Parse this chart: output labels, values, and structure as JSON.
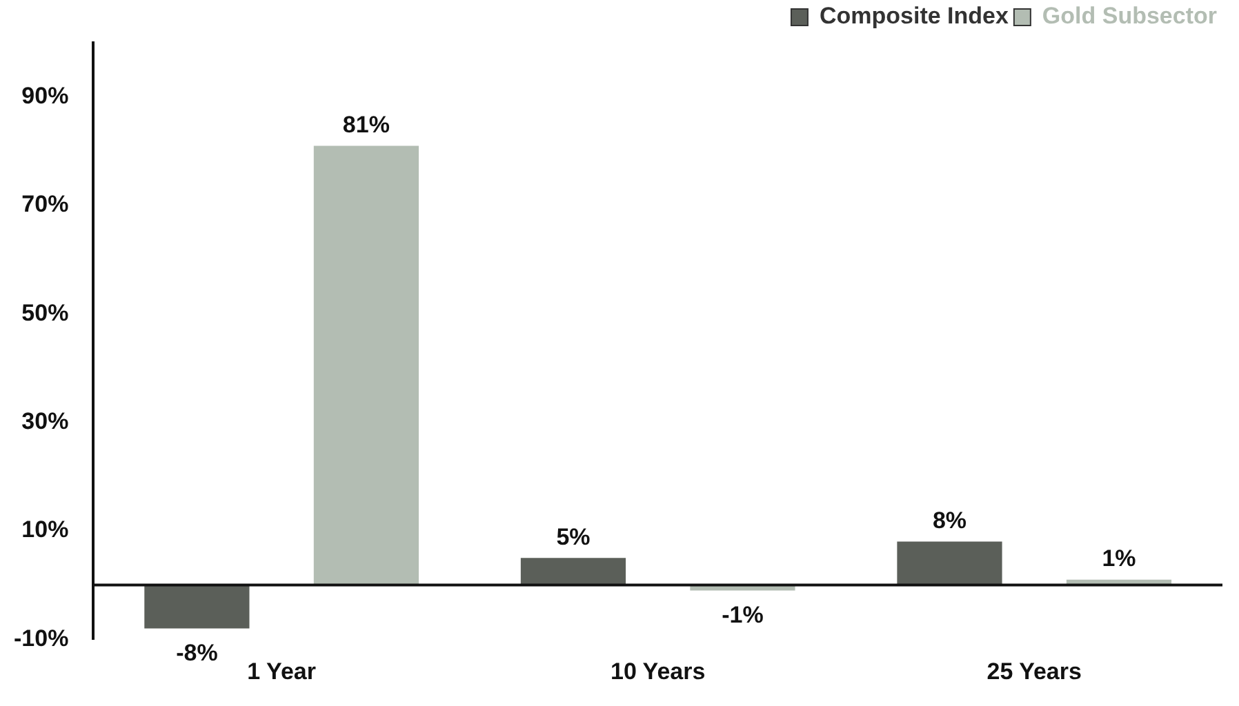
{
  "chart_data": {
    "type": "bar",
    "categories": [
      "1 Year",
      "10 Years",
      "25 Years"
    ],
    "series": [
      {
        "name": "Composite Index",
        "color": "#5b5f59",
        "values": [
          -8,
          5,
          8
        ],
        "value_labels": [
          "-8%",
          "5%",
          "8%"
        ]
      },
      {
        "name": "Gold Subsector",
        "color": "#b3bdb3",
        "values": [
          81,
          -1,
          1
        ],
        "value_labels": [
          "81%",
          "-1%",
          "1%"
        ]
      }
    ],
    "ylim": [
      -10,
      100
    ],
    "yticks": [
      {
        "value": -10,
        "label": "-10%"
      },
      {
        "value": 10,
        "label": "10%"
      },
      {
        "value": 30,
        "label": "30%"
      },
      {
        "value": 50,
        "label": "50%"
      },
      {
        "value": 70,
        "label": "70%"
      },
      {
        "value": 90,
        "label": "90%"
      }
    ],
    "grid": false,
    "legend": "top right"
  }
}
